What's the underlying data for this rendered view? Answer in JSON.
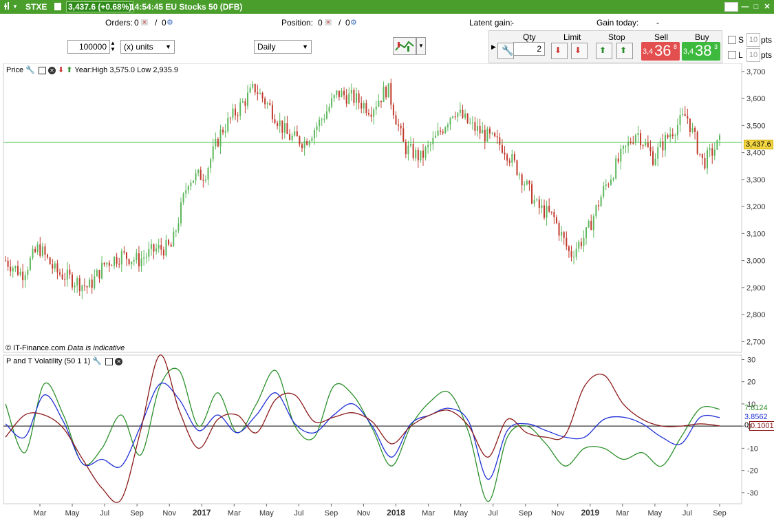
{
  "titlebar": {
    "symbol": "STXE",
    "price_change": "3,437.6 (+0.68%)",
    "time_name": "14:54:45 EU Stocks 50 (DFB)"
  },
  "infobar": {
    "orders_label": "Orders:",
    "orders_count": "0",
    "orders_count2": "0",
    "position_label": "Position:",
    "position_count": "0",
    "position_count2": "0",
    "latent_label": "Latent gain:",
    "latent_value": "-",
    "gain_today_label": "Gain today:",
    "gain_today_value": "-"
  },
  "toolbar": {
    "quantity": "100000",
    "unit_select": "(x) units",
    "period_select": "Daily"
  },
  "trade": {
    "qty_label": "Qty",
    "qty_value": "2",
    "limit_label": "Limit",
    "stop_label": "Stop",
    "sell_label": "Sell",
    "buy_label": "Buy",
    "sell_prefix": "3,4",
    "sell_big": "36",
    "sell_sup": "8",
    "buy_prefix": "3,4",
    "buy_big": "38",
    "buy_sup": "3",
    "s_label": "S",
    "l_label": "L",
    "s_pts": "10",
    "l_pts": "10",
    "pts_label": "pts"
  },
  "price_panel": {
    "label": "Price",
    "year_info": "Year:High 3,575.0 Low 2,935.9",
    "credit": "© IT-Finance.com",
    "disclaimer": "Data is indicative",
    "current_price": "3,437.6"
  },
  "vol_panel": {
    "label": "P and T Volatility (50 1 1)",
    "green_value": "7.6124",
    "blue_value": "3.8562",
    "red_value": "0.1001",
    "zero_label": "0"
  },
  "colors": {
    "titlebar": "#4a9f2c",
    "up_candle": "#5cb85c",
    "down_candle": "#c0392b",
    "green_line": "#2a8f2a",
    "blue_line": "#1f2fd6",
    "red_line": "#8b1a1a",
    "sell": "#e34e4e",
    "buy": "#3dba3d"
  },
  "chart_data": [
    {
      "type": "candlestick",
      "title": "",
      "ylim": [
        2650,
        3720
      ],
      "y_ticks": [
        "3,700",
        "3,600",
        "3,500",
        "3,400",
        "3,300",
        "3,200",
        "3,100",
        "3,000",
        "2,900",
        "2,800",
        "2,700"
      ],
      "x_ticks": [
        "Mar",
        "May",
        "Jul",
        "Sep",
        "Nov",
        "2017",
        "Mar",
        "May",
        "Jul",
        "Sep",
        "Nov",
        "2018",
        "Mar",
        "May",
        "Jul",
        "Sep",
        "Nov",
        "2019",
        "Mar",
        "May",
        "Jul",
        "Sep"
      ],
      "x": [
        "2016-02",
        "2016-03",
        "2016-04",
        "2016-05",
        "2016-06",
        "2016-07",
        "2016-08",
        "2016-09",
        "2016-10",
        "2016-11",
        "2016-12",
        "2017-01",
        "2017-02",
        "2017-03",
        "2017-04",
        "2017-05",
        "2017-06",
        "2017-07",
        "2017-08",
        "2017-09",
        "2017-10",
        "2017-11",
        "2017-12",
        "2018-01",
        "2018-02",
        "2018-03",
        "2018-04",
        "2018-05",
        "2018-06",
        "2018-07",
        "2018-08",
        "2018-09",
        "2018-10",
        "2018-11",
        "2018-12",
        "2019-01",
        "2019-02",
        "2019-03",
        "2019-04",
        "2019-05",
        "2019-06",
        "2019-07",
        "2019-08",
        "2019-09"
      ],
      "values": [
        3000,
        2950,
        3050,
        2960,
        2930,
        2900,
        2990,
        3020,
        3000,
        3040,
        3050,
        3300,
        3320,
        3480,
        3560,
        3640,
        3560,
        3460,
        3440,
        3520,
        3620,
        3600,
        3560,
        3640,
        3420,
        3380,
        3460,
        3560,
        3500,
        3460,
        3420,
        3320,
        3200,
        3160,
        3020,
        3100,
        3260,
        3380,
        3480,
        3380,
        3470,
        3540,
        3360,
        3437.6
      ],
      "reference_line": 3437.6
    },
    {
      "type": "line",
      "title": "P and T Volatility (50 1 1)",
      "ylim": [
        -35,
        32
      ],
      "y_ticks": [
        "30",
        "20",
        "10",
        "0",
        "-10",
        "-20",
        "-30"
      ],
      "series": [
        {
          "name": "",
          "color": "green",
          "values": [
            10,
            -12,
            19,
            5,
            -17,
            -10,
            5,
            -13,
            18,
            25,
            0,
            15,
            -3,
            10,
            25,
            0,
            -5,
            18,
            14,
            -1,
            -18,
            0,
            11,
            15,
            -3,
            -34,
            -5,
            0,
            -8,
            -18,
            -10,
            -10,
            -15,
            -12,
            -18,
            -5,
            8,
            7.6124
          ]
        },
        {
          "name": "",
          "color": "blue",
          "values": [
            1,
            -5,
            14,
            2,
            -17,
            -15,
            -18,
            0,
            19,
            12,
            -2,
            5,
            -3,
            5,
            15,
            1,
            -3,
            5,
            10,
            0,
            -14,
            1,
            5,
            8,
            2,
            -24,
            -2,
            1,
            -2,
            -5,
            -5,
            3,
            4,
            1,
            -5,
            -8,
            4,
            3.8562
          ]
        },
        {
          "name": "",
          "color": "red",
          "values": [
            -5,
            5,
            5,
            -1,
            -15,
            -28,
            -33,
            -2,
            32,
            7,
            -10,
            3,
            5,
            -3,
            12,
            14,
            2,
            4,
            6,
            2,
            -8,
            0,
            5,
            7,
            0,
            -14,
            3,
            -3,
            -5,
            -4,
            18,
            23,
            10,
            3,
            0,
            0,
            1,
            0.1001
          ]
        }
      ]
    }
  ]
}
